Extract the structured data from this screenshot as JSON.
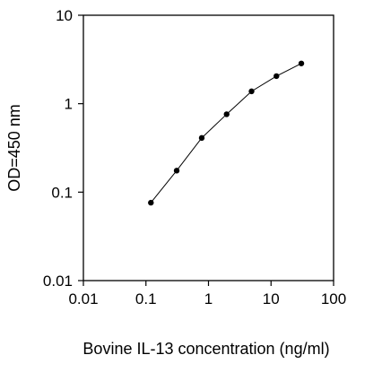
{
  "chart_data": {
    "type": "scatter",
    "title": "",
    "xlabel": "Bovine IL-13 concentration (ng/ml)",
    "ylabel": "OD=450 nm",
    "x_scale": "log",
    "y_scale": "log",
    "xlim": [
      0.01,
      100
    ],
    "ylim": [
      0.01,
      10
    ],
    "x_ticks": [
      0.01,
      0.1,
      1,
      10,
      100
    ],
    "x_tick_labels": [
      "0.01",
      "0.1",
      "1",
      "10",
      "100"
    ],
    "y_ticks": [
      0.01,
      0.1,
      1,
      10
    ],
    "y_tick_labels": [
      "0.01",
      "0.1",
      "1",
      "10"
    ],
    "grid": false,
    "legend": "none",
    "line_color": "#000000",
    "marker_color": "#000000",
    "series": [
      {
        "x": [
          0.12,
          0.31,
          0.78,
          1.95,
          4.88,
          12.2,
          30.5
        ],
        "y": [
          0.076,
          0.175,
          0.41,
          0.76,
          1.38,
          2.05,
          2.85
        ]
      }
    ]
  }
}
